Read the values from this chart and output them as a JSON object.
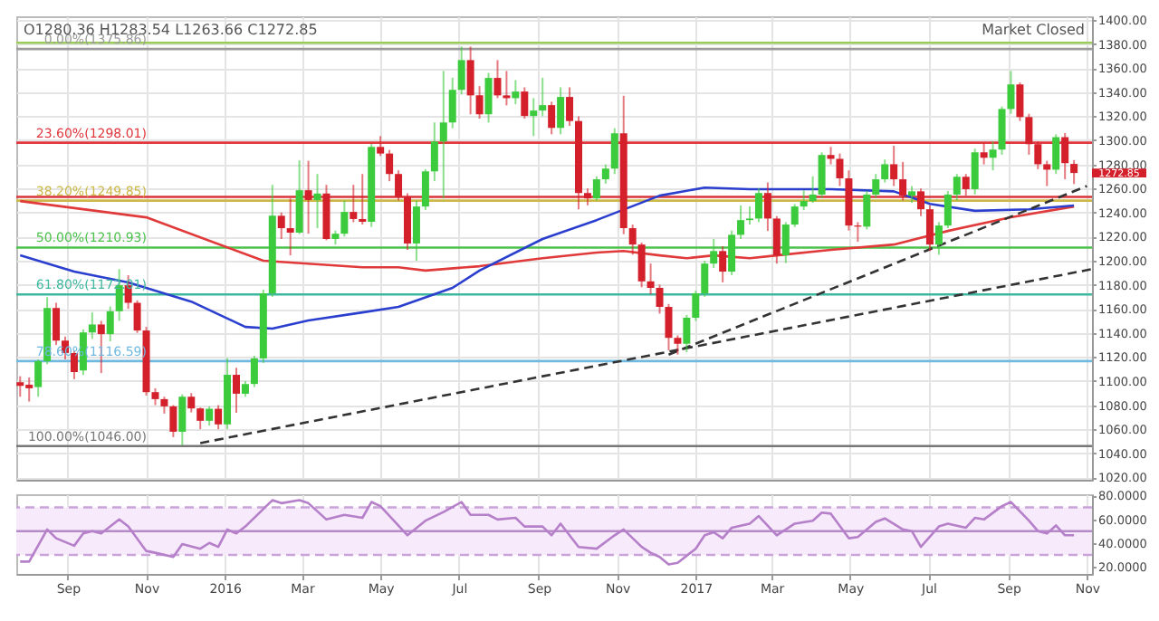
{
  "chart_data": [
    {
      "type": "candlestick",
      "x": [
        "2015-07-26",
        "2015-08-02",
        "2015-08-09",
        "2015-08-16",
        "2015-08-23",
        "2015-08-30",
        "2015-09-06",
        "2015-09-13",
        "2015-09-20",
        "2015-09-27",
        "2015-10-04",
        "2015-10-11",
        "2015-10-18",
        "2015-10-25",
        "2015-11-01",
        "2015-11-08",
        "2015-11-15",
        "2015-11-22",
        "2015-11-29",
        "2015-12-06",
        "2015-12-13",
        "2015-12-20",
        "2015-12-27",
        "2016-01-03",
        "2016-01-10",
        "2016-01-17",
        "2016-01-24",
        "2016-01-31",
        "2016-02-07",
        "2016-02-14",
        "2016-02-21",
        "2016-02-28",
        "2016-03-06",
        "2016-03-13",
        "2016-03-20",
        "2016-03-27",
        "2016-04-03",
        "2016-04-10",
        "2016-04-17",
        "2016-04-24",
        "2016-05-01",
        "2016-05-08",
        "2016-05-15",
        "2016-05-22",
        "2016-05-29",
        "2016-06-05",
        "2016-06-12",
        "2016-06-19",
        "2016-06-26",
        "2016-07-03",
        "2016-07-10",
        "2016-07-17",
        "2016-07-24",
        "2016-07-31",
        "2016-08-07",
        "2016-08-14",
        "2016-08-21",
        "2016-08-28",
        "2016-09-04",
        "2016-09-11",
        "2016-09-18",
        "2016-09-25",
        "2016-10-02",
        "2016-10-09",
        "2016-10-16",
        "2016-10-23",
        "2016-10-30",
        "2016-11-06",
        "2016-11-13",
        "2016-11-20",
        "2016-11-27",
        "2016-12-04",
        "2016-12-11",
        "2016-12-18",
        "2016-12-25",
        "2017-01-01",
        "2017-01-08",
        "2017-01-15",
        "2017-01-22",
        "2017-01-29",
        "2017-02-05",
        "2017-02-12",
        "2017-02-19",
        "2017-02-26",
        "2017-03-05",
        "2017-03-12",
        "2017-03-19",
        "2017-03-26",
        "2017-04-02",
        "2017-04-09",
        "2017-04-16",
        "2017-04-23",
        "2017-04-30",
        "2017-05-07",
        "2017-05-14",
        "2017-05-21",
        "2017-05-28",
        "2017-06-04",
        "2017-06-11",
        "2017-06-18",
        "2017-06-25",
        "2017-07-02",
        "2017-07-09",
        "2017-07-16",
        "2017-07-23",
        "2017-07-30",
        "2017-08-06",
        "2017-08-13",
        "2017-08-20",
        "2017-08-27",
        "2017-09-03",
        "2017-09-10",
        "2017-09-17",
        "2017-09-24",
        "2017-10-01",
        "2017-10-08",
        "2017-10-15",
        "2017-10-22"
      ],
      "ohlc": [
        [
          1099,
          1104,
          1087,
          1096
        ],
        [
          1097,
          1103,
          1083,
          1094
        ],
        [
          1095,
          1118,
          1087,
          1116.5
        ],
        [
          1116.5,
          1169.7,
          1114,
          1160.7
        ],
        [
          1160.7,
          1165,
          1130,
          1133.6
        ],
        [
          1133.6,
          1137,
          1118,
          1123.3
        ],
        [
          1123.3,
          1125,
          1101.6,
          1107.5
        ],
        [
          1108.8,
          1143,
          1105,
          1140.4
        ],
        [
          1140.4,
          1157,
          1135,
          1147
        ],
        [
          1147,
          1150,
          1106.6,
          1139
        ],
        [
          1139,
          1162,
          1133,
          1158
        ],
        [
          1158,
          1193,
          1150,
          1179.6
        ],
        [
          1179.6,
          1188,
          1160,
          1165
        ],
        [
          1165,
          1167,
          1140,
          1142
        ],
        [
          1142,
          1145,
          1088,
          1090.8
        ],
        [
          1090.8,
          1094,
          1080,
          1085
        ],
        [
          1085,
          1087,
          1073,
          1079
        ],
        [
          1079,
          1080,
          1053.4,
          1057.9
        ],
        [
          1057.9,
          1089,
          1046.7,
          1087
        ],
        [
          1087,
          1090,
          1074,
          1077.3
        ],
        [
          1077.3,
          1078,
          1060,
          1067
        ],
        [
          1067,
          1079,
          1063,
          1077
        ],
        [
          1077,
          1080,
          1060,
          1064
        ],
        [
          1064,
          1119,
          1060,
          1105.2
        ],
        [
          1105.2,
          1111,
          1073.7,
          1089.5
        ],
        [
          1089.5,
          1100,
          1087,
          1097.6
        ],
        [
          1097.6,
          1121,
          1095,
          1118.8
        ],
        [
          1118.8,
          1176,
          1115,
          1172.9
        ],
        [
          1172.9,
          1263,
          1170,
          1237.3
        ],
        [
          1237.3,
          1240,
          1218,
          1227
        ],
        [
          1227,
          1251.7,
          1204.4,
          1223.3
        ],
        [
          1223.3,
          1283.3,
          1222,
          1258.5
        ],
        [
          1258.5,
          1283,
          1222.4,
          1250.4
        ],
        [
          1250.4,
          1272,
          1227,
          1255.8
        ],
        [
          1255.8,
          1263,
          1217,
          1218
        ],
        [
          1218,
          1225,
          1213.4,
          1222.4
        ],
        [
          1222.4,
          1250,
          1220,
          1240.5
        ],
        [
          1240.5,
          1263,
          1232,
          1234.6
        ],
        [
          1234.6,
          1272,
          1230,
          1232.3
        ],
        [
          1232.3,
          1297,
          1228,
          1294.5
        ],
        [
          1294.5,
          1303.5,
          1287,
          1289
        ],
        [
          1289,
          1292,
          1266,
          1272
        ],
        [
          1272,
          1275,
          1250,
          1253
        ],
        [
          1253,
          1256,
          1209,
          1214.3
        ],
        [
          1214.3,
          1250,
          1200,
          1245
        ],
        [
          1245,
          1276,
          1242,
          1274.2
        ],
        [
          1274.2,
          1314.8,
          1266,
          1299
        ],
        [
          1299,
          1357.6,
          1251.7,
          1314.8
        ],
        [
          1314.8,
          1352,
          1310,
          1341.9
        ],
        [
          1341.9,
          1377.9,
          1338,
          1366.6
        ],
        [
          1366.6,
          1377.8,
          1321.6,
          1337.3
        ],
        [
          1337.3,
          1345,
          1318,
          1321.6
        ],
        [
          1321.6,
          1356,
          1314.8,
          1351.8
        ],
        [
          1351.8,
          1366.6,
          1335,
          1337.3
        ],
        [
          1337.3,
          1357.6,
          1329,
          1335
        ],
        [
          1335,
          1350,
          1330,
          1340.5
        ],
        [
          1340.5,
          1344,
          1318,
          1320.2
        ],
        [
          1320.2,
          1335,
          1303.5,
          1324.7
        ],
        [
          1324.7,
          1352,
          1320,
          1329.2
        ],
        [
          1329.2,
          1332,
          1305,
          1310.3
        ],
        [
          1310.3,
          1344,
          1305,
          1336
        ],
        [
          1336,
          1344,
          1312,
          1316
        ],
        [
          1316,
          1320,
          1242.7,
          1256.2
        ],
        [
          1256.2,
          1260,
          1246,
          1251.7
        ],
        [
          1251.7,
          1270,
          1250,
          1267.6
        ],
        [
          1267.6,
          1280,
          1264,
          1276.5
        ],
        [
          1276.5,
          1310,
          1272,
          1305.8
        ],
        [
          1305.8,
          1337,
          1222,
          1227
        ],
        [
          1227,
          1230,
          1205,
          1213.4
        ],
        [
          1213.4,
          1215,
          1178,
          1182.8
        ],
        [
          1182.8,
          1197.6,
          1172,
          1177.4
        ],
        [
          1177.4,
          1180,
          1156,
          1161.6
        ],
        [
          1161.6,
          1164,
          1125.5,
          1135.9
        ],
        [
          1135.9,
          1138,
          1122,
          1131
        ],
        [
          1131,
          1155,
          1124,
          1152.6
        ],
        [
          1152.6,
          1175,
          1150,
          1172.9
        ],
        [
          1172.9,
          1200,
          1170,
          1197.6
        ],
        [
          1197.6,
          1218,
          1194,
          1208
        ],
        [
          1208,
          1212,
          1182,
          1190.9
        ],
        [
          1190.9,
          1225,
          1188,
          1221.5
        ],
        [
          1221.5,
          1245.9,
          1218,
          1233.7
        ],
        [
          1233.7,
          1245,
          1230,
          1235
        ],
        [
          1235,
          1260,
          1232,
          1256.2
        ],
        [
          1256.2,
          1265,
          1224.7,
          1235
        ],
        [
          1235,
          1237,
          1197.6,
          1204.4
        ],
        [
          1204.4,
          1232,
          1198,
          1230
        ],
        [
          1230,
          1247,
          1228,
          1245
        ],
        [
          1245,
          1258.5,
          1242,
          1249.5
        ],
        [
          1249.5,
          1270,
          1248,
          1254.9
        ],
        [
          1254.9,
          1290,
          1252,
          1287.8
        ],
        [
          1287.8,
          1294.5,
          1280,
          1284.6
        ],
        [
          1284.6,
          1289,
          1262,
          1268.4
        ],
        [
          1268.4,
          1275,
          1225,
          1229.2
        ],
        [
          1229.2,
          1232,
          1215.7,
          1228.3
        ],
        [
          1228.3,
          1258,
          1226,
          1254.9
        ],
        [
          1254.9,
          1272,
          1252,
          1267.6
        ],
        [
          1267.6,
          1284,
          1265,
          1280.1
        ],
        [
          1280.1,
          1295.4,
          1262,
          1267.6
        ],
        [
          1267.6,
          1282,
          1250,
          1254
        ],
        [
          1254,
          1262,
          1248,
          1257.6
        ],
        [
          1257.6,
          1260,
          1237,
          1242.7
        ],
        [
          1242.7,
          1246,
          1208,
          1213.4
        ],
        [
          1213.4,
          1232,
          1205,
          1229.2
        ],
        [
          1229.2,
          1258,
          1227,
          1254.9
        ],
        [
          1254.9,
          1272,
          1250,
          1269.7
        ],
        [
          1269.7,
          1272,
          1254,
          1259.4
        ],
        [
          1259.4,
          1293,
          1255,
          1290
        ],
        [
          1290,
          1298,
          1280,
          1285.5
        ],
        [
          1285.5,
          1299,
          1275,
          1292.3
        ],
        [
          1292.3,
          1328,
          1288,
          1326
        ],
        [
          1326,
          1357.6,
          1322,
          1346.4
        ],
        [
          1346.4,
          1348,
          1316,
          1319.3
        ],
        [
          1319.3,
          1322,
          1288,
          1296.8
        ],
        [
          1296.8,
          1299,
          1276,
          1280.1
        ],
        [
          1280.1,
          1283,
          1262,
          1275.6
        ],
        [
          1275.6,
          1305,
          1272,
          1302.6
        ],
        [
          1302.6,
          1306,
          1267.6,
          1281
        ],
        [
          1280.36,
          1283.54,
          1263.66,
          1272.85
        ]
      ],
      "colors": [
        "#d4202a",
        "#d4202a",
        "#3ccb3c",
        "#3ccb3c",
        "#d4202a",
        "#d4202a",
        "#d4202a",
        "#3ccb3c",
        "#3ccb3c",
        "#d4202a",
        "#3ccb3c",
        "#3ccb3c",
        "#d4202a",
        "#d4202a",
        "#d4202a",
        "#d4202a",
        "#d4202a",
        "#d4202a",
        "#3ccb3c",
        "#d4202a",
        "#d4202a",
        "#3ccb3c",
        "#d4202a",
        "#3ccb3c",
        "#d4202a",
        "#3ccb3c",
        "#3ccb3c",
        "#3ccb3c",
        "#3ccb3c",
        "#d4202a",
        "#d4202a",
        "#3ccb3c",
        "#d4202a",
        "#3ccb3c",
        "#d4202a",
        "#3ccb3c",
        "#3ccb3c",
        "#d4202a",
        "#d4202a",
        "#3ccb3c",
        "#d4202a",
        "#d4202a",
        "#d4202a",
        "#d4202a",
        "#3ccb3c",
        "#3ccb3c",
        "#3ccb3c",
        "#3ccb3c",
        "#3ccb3c",
        "#3ccb3c",
        "#d4202a",
        "#d4202a",
        "#3ccb3c",
        "#d4202a",
        "#d4202a",
        "#3ccb3c",
        "#d4202a",
        "#3ccb3c",
        "#3ccb3c",
        "#d4202a",
        "#3ccb3c",
        "#d4202a",
        "#d4202a",
        "#d4202a",
        "#3ccb3c",
        "#3ccb3c",
        "#3ccb3c",
        "#d4202a",
        "#d4202a",
        "#d4202a",
        "#d4202a",
        "#d4202a",
        "#d4202a",
        "#d4202a",
        "#3ccb3c",
        "#3ccb3c",
        "#3ccb3c",
        "#3ccb3c",
        "#d4202a",
        "#3ccb3c",
        "#3ccb3c",
        "#3ccb3c",
        "#3ccb3c",
        "#d4202a",
        "#d4202a",
        "#3ccb3c",
        "#3ccb3c",
        "#3ccb3c",
        "#3ccb3c",
        "#3ccb3c",
        "#d4202a",
        "#d4202a",
        "#d4202a",
        "#d4202a",
        "#3ccb3c",
        "#3ccb3c",
        "#3ccb3c",
        "#d4202a",
        "#d4202a",
        "#3ccb3c",
        "#d4202a",
        "#d4202a",
        "#3ccb3c",
        "#3ccb3c",
        "#3ccb3c",
        "#d4202a",
        "#3ccb3c",
        "#d4202a",
        "#3ccb3c",
        "#3ccb3c",
        "#3ccb3c",
        "#d4202a",
        "#d4202a",
        "#d4202a",
        "#d4202a",
        "#3ccb3c",
        "#d4202a",
        "#d4202a"
      ],
      "series": [
        {
          "type": "line",
          "color": "#e03a3a",
          "x": [
            "2015-07-26",
            "2015-11-01",
            "2016-01-31",
            "2016-04-17",
            "2016-05-15",
            "2016-06-05",
            "2016-07-17",
            "2016-09-04",
            "2016-10-16",
            "2016-11-06",
            "2016-12-04",
            "2016-12-25",
            "2017-01-15",
            "2017-02-12",
            "2017-03-05",
            "2017-04-16",
            "2017-06-04",
            "2017-07-16",
            "2017-09-03",
            "2017-10-22"
          ],
          "values": [
            1249.5,
            1236,
            1200,
            1194.5,
            1194.5,
            1191.8,
            1195.4,
            1202,
            1206.7,
            1208,
            1204.4,
            1202,
            1204.4,
            1202,
            1204.4,
            1209,
            1213.4,
            1224.7,
            1236,
            1245
          ]
        },
        {
          "type": "line",
          "color": "#2b3fcf",
          "x": [
            "2015-07-26",
            "2015-09-06",
            "2015-10-18",
            "2015-12-06",
            "2016-01-17",
            "2016-02-07",
            "2016-03-06",
            "2016-04-17",
            "2016-05-15",
            "2016-06-26",
            "2016-07-17",
            "2016-09-04",
            "2016-10-16",
            "2016-12-04",
            "2017-01-08",
            "2017-02-12",
            "2017-04-16",
            "2017-06-04",
            "2017-07-02",
            "2017-08-06",
            "2017-09-17",
            "2017-10-22"
          ],
          "values": [
            1204.4,
            1191,
            1182,
            1166,
            1145,
            1143.6,
            1150.3,
            1157,
            1161.6,
            1177.4,
            1191.8,
            1218,
            1233.7,
            1254,
            1260.7,
            1259.4,
            1259.4,
            1257.6,
            1247.2,
            1241.4,
            1242.7,
            1245.9
          ]
        },
        {
          "type": "line",
          "color": "#333333",
          "line_style": "dashed",
          "x": [
            "2015-12-13",
            "2017-11-05"
          ],
          "values": [
            1048.5,
            1193
          ]
        },
        {
          "type": "line",
          "color": "#333333",
          "line_style": "dashed",
          "x": [
            "2016-12-11",
            "2017-11-01"
          ],
          "values": [
            1122,
            1262
          ]
        }
      ],
      "ref_lines": [
        {
          "axis": "y",
          "value": 1381,
          "color": "#9acd5a"
        },
        {
          "axis": "y",
          "value": 1375.86,
          "label": "0.00%(1375.86)",
          "color": "#9a9a9a"
        },
        {
          "axis": "y",
          "value": 1298.01,
          "label": "23.60%(1298.01)",
          "color": "#e0383e"
        },
        {
          "axis": "y",
          "value": 1253,
          "color": "#d9343a"
        },
        {
          "axis": "y",
          "value": 1249.85,
          "label": "38.20%(1249.85)",
          "color": "#cdb94a"
        },
        {
          "axis": "y",
          "value": 1210.93,
          "label": "50.00%(1210.93)",
          "color": "#4cc24c"
        },
        {
          "axis": "y",
          "value": 1172.01,
          "label": "61.80%(1172.01)",
          "color": "#3fb8a0"
        },
        {
          "axis": "y",
          "value": 1116.59,
          "label": "78.60%(1116.59)",
          "color": "#6fb8e0"
        },
        {
          "axis": "y",
          "value": 1046,
          "label": "100.00%(1046.00)",
          "color": "#777777"
        }
      ],
      "annotations": [
        "O1280.36 H1283.54 L1263.66 C1272.85",
        "Market Closed",
        "1272.85"
      ],
      "xlim": [
        "2015-07-23",
        "2017-11-05"
      ],
      "xticks": [
        {
          "value": "2015-09-01",
          "label": null
        },
        {
          "value": "2015-11-01",
          "label": null
        },
        {
          "value": "2016-01-01",
          "label": null
        },
        {
          "value": "2016-03-01",
          "label": null
        },
        {
          "value": "2016-05-01",
          "label": null
        },
        {
          "value": "2016-07-01",
          "label": null
        },
        {
          "value": "2016-09-01",
          "label": null
        },
        {
          "value": "2016-11-01",
          "label": null
        },
        {
          "value": "2017-01-01",
          "label": null
        },
        {
          "value": "2017-03-01",
          "label": null
        },
        {
          "value": "2017-05-01",
          "label": null
        },
        {
          "value": "2017-07-01",
          "label": null
        },
        {
          "value": "2017-09-01",
          "label": null
        },
        {
          "value": "2017-11-01",
          "label": null
        }
      ],
      "ylim": [
        1018,
        1403
      ],
      "yticks": [
        {
          "value": 1020,
          "label": "1020.00"
        },
        {
          "value": 1040,
          "label": "1040.00"
        },
        {
          "value": 1060,
          "label": "1060.00"
        },
        {
          "value": 1080,
          "label": "1080.00"
        },
        {
          "value": 1100,
          "label": "1100.00"
        },
        {
          "value": 1120,
          "label": "1120.00"
        },
        {
          "value": 1140,
          "label": "1140.00"
        },
        {
          "value": 1160,
          "label": "1160.00"
        },
        {
          "value": 1180,
          "label": "1180.00"
        },
        {
          "value": 1200,
          "label": "1200.00"
        },
        {
          "value": 1220,
          "label": "1220.00"
        },
        {
          "value": 1240,
          "label": "1240.00"
        },
        {
          "value": 1260,
          "label": "1260.00"
        },
        {
          "value": 1280,
          "label": "1280.00"
        },
        {
          "value": 1300,
          "label": "1300.00"
        },
        {
          "value": 1320,
          "label": "1320.00"
        },
        {
          "value": 1340,
          "label": "1340.00"
        },
        {
          "value": 1360,
          "label": "1360.00"
        },
        {
          "value": 1380,
          "label": "1380.00"
        },
        {
          "value": 1400,
          "label": "1400.00"
        }
      ],
      "grid": true,
      "tick_labels": "y",
      "legend": false
    },
    {
      "type": "line",
      "series": [
        {
          "color": "#b57fc9",
          "x": [
            "2015-07-26",
            "2015-08-02",
            "2015-08-16",
            "2015-08-23",
            "2015-09-06",
            "2015-09-13",
            "2015-09-20",
            "2015-09-27",
            "2015-10-11",
            "2015-10-18",
            "2015-11-01",
            "2015-11-08",
            "2015-11-22",
            "2015-11-29",
            "2015-12-13",
            "2015-12-20",
            "2015-12-27",
            "2016-01-03",
            "2016-01-10",
            "2016-01-17",
            "2016-02-07",
            "2016-02-14",
            "2016-02-28",
            "2016-03-06",
            "2016-03-20",
            "2016-04-03",
            "2016-04-17",
            "2016-04-24",
            "2016-05-01",
            "2016-05-22",
            "2016-06-05",
            "2016-06-19",
            "2016-07-03",
            "2016-07-10",
            "2016-07-24",
            "2016-07-31",
            "2016-08-14",
            "2016-08-21",
            "2016-09-04",
            "2016-09-11",
            "2016-09-18",
            "2016-10-02",
            "2016-10-16",
            "2016-10-30",
            "2016-11-06",
            "2016-11-20",
            "2016-11-27",
            "2016-12-04",
            "2016-12-11",
            "2016-12-18",
            "2017-01-01",
            "2017-01-08",
            "2017-01-15",
            "2017-01-22",
            "2017-01-29",
            "2017-02-12",
            "2017-02-19",
            "2017-03-05",
            "2017-03-19",
            "2017-04-02",
            "2017-04-09",
            "2017-04-16",
            "2017-04-30",
            "2017-05-07",
            "2017-05-21",
            "2017-05-28",
            "2017-06-11",
            "2017-06-18",
            "2017-06-25",
            "2017-07-09",
            "2017-07-16",
            "2017-07-30",
            "2017-08-06",
            "2017-08-13",
            "2017-08-27",
            "2017-09-03",
            "2017-09-17",
            "2017-09-24",
            "2017-10-01",
            "2017-10-08",
            "2017-10-15",
            "2017-10-22"
          ],
          "values": [
            24.4,
            24.4,
            51.4,
            44,
            37.7,
            48,
            50,
            48,
            59.8,
            53.9,
            33.3,
            31.8,
            28.3,
            39.1,
            35.2,
            40.1,
            36.7,
            51.4,
            48,
            53.9,
            76,
            73.5,
            76,
            73.5,
            59.8,
            63.7,
            61.2,
            74.5,
            71,
            46.5,
            58.8,
            66.1,
            74.5,
            63.7,
            63.7,
            59.8,
            61.2,
            53.9,
            53.9,
            46.5,
            56.3,
            36.7,
            35.2,
            46.5,
            51.4,
            36.7,
            31.8,
            28.3,
            22,
            23.4,
            35.2,
            46.5,
            49,
            44,
            52.9,
            56.3,
            62.7,
            46.5,
            56.3,
            58.8,
            65.6,
            64.7,
            44,
            45,
            57.8,
            60.7,
            51.4,
            50,
            36.7,
            53.9,
            56.3,
            52.9,
            61.2,
            59.8,
            71,
            74.5,
            58.8,
            50,
            48,
            54.8,
            46.5,
            46.5
          ]
        }
      ],
      "ref_lines": [
        {
          "axis": "y",
          "value": 70,
          "color": "#c9a3d9",
          "line_style": "dashed"
        },
        {
          "axis": "y",
          "value": 50,
          "color": "#b58ac8"
        },
        {
          "axis": "y",
          "value": 30,
          "color": "#c9a3d9",
          "line_style": "dashed"
        }
      ],
      "bands": [
        {
          "axis": "y",
          "from": 30,
          "to": 70,
          "color": "#f6eafb"
        }
      ],
      "xlim": [
        "2015-07-23",
        "2017-11-05"
      ],
      "xticks": [
        {
          "value": "2015-09-01",
          "label": "Sep"
        },
        {
          "value": "2015-11-01",
          "label": "Nov"
        },
        {
          "value": "2016-01-01",
          "label": "2016"
        },
        {
          "value": "2016-03-01",
          "label": "Mar"
        },
        {
          "value": "2016-05-01",
          "label": "May"
        },
        {
          "value": "2016-07-01",
          "label": "Jul"
        },
        {
          "value": "2016-09-01",
          "label": "Sep"
        },
        {
          "value": "2016-11-01",
          "label": "Nov"
        },
        {
          "value": "2017-01-01",
          "label": "2017"
        },
        {
          "value": "2017-03-01",
          "label": "Mar"
        },
        {
          "value": "2017-05-01",
          "label": "May"
        },
        {
          "value": "2017-07-01",
          "label": "Jul"
        },
        {
          "value": "2017-09-01",
          "label": "Sep"
        },
        {
          "value": "2017-11-01",
          "label": "Nov"
        }
      ],
      "ylim": [
        14,
        81
      ],
      "yticks": [
        {
          "value": 20,
          "label": "20.0000"
        },
        {
          "value": 40,
          "label": "40.0000"
        },
        {
          "value": 60,
          "label": "60.0000"
        },
        {
          "value": 80,
          "label": "80.0000"
        }
      ],
      "grid": "x"
    }
  ]
}
